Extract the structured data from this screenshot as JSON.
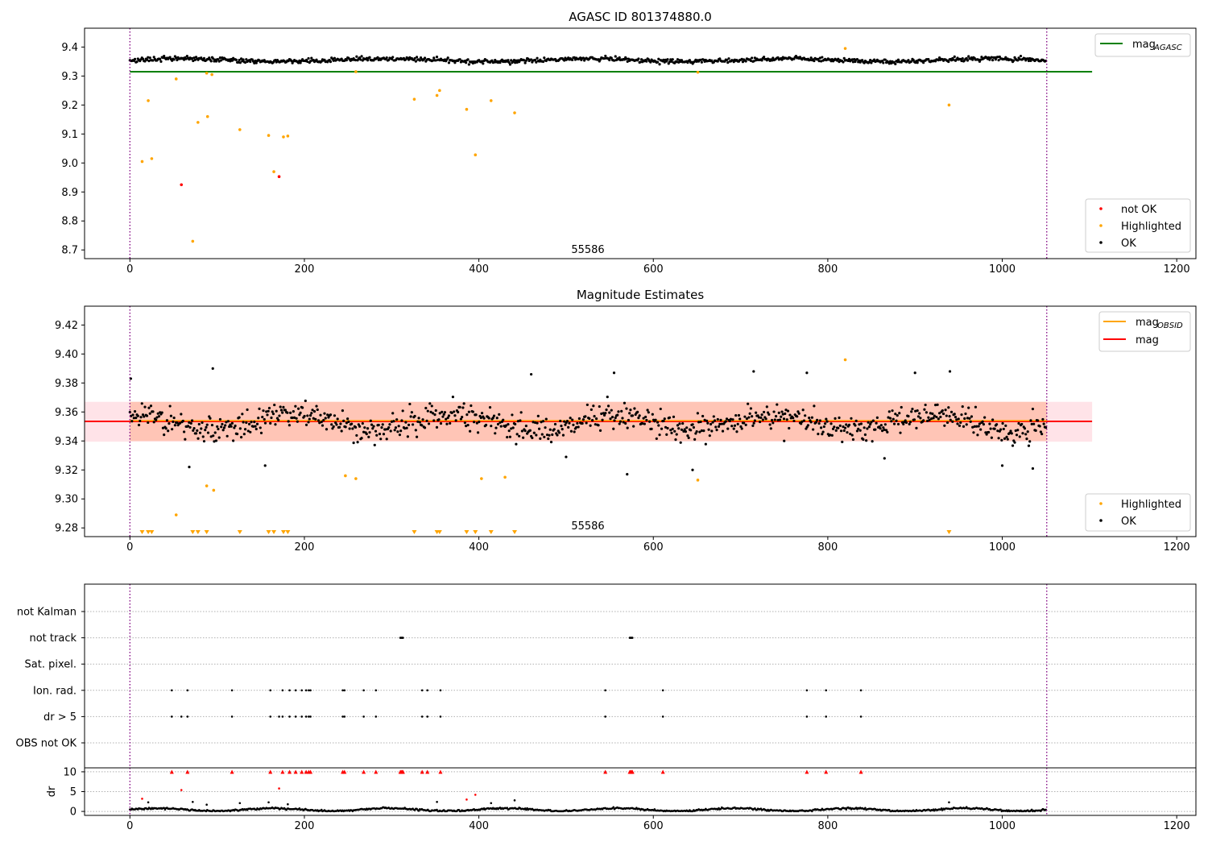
{
  "chart_data": [
    {
      "type": "scatter",
      "title": "AGASC ID 801374880.0",
      "xlim": [
        -52,
        1222
      ],
      "ylim": [
        8.67,
        9.465
      ],
      "xticks": [
        0,
        200,
        400,
        600,
        800,
        1000,
        1200
      ],
      "yticks": [
        8.7,
        8.8,
        8.9,
        9.0,
        9.1,
        9.2,
        9.3,
        9.4
      ],
      "vlines": [
        0,
        1051
      ],
      "vline_color": "#800080",
      "obsid_label": {
        "x": 525,
        "y": 8.69,
        "text": "55586"
      },
      "hline": {
        "name": "mag_AGASC",
        "y": 9.315,
        "x": [
          0,
          1103
        ],
        "color": "#008000"
      },
      "legend_top": [
        {
          "name": "mag",
          "sub": "AGASC",
          "color": "#008000",
          "kind": "line"
        }
      ],
      "legend_bottom": [
        {
          "name": "not OK",
          "color": "#ff0000",
          "kind": "dot"
        },
        {
          "name": "Highlighted",
          "color": "#ffa500",
          "kind": "dot"
        },
        {
          "name": "OK",
          "color": "#000000",
          "kind": "dot"
        }
      ],
      "ok_series": {
        "name": "OK",
        "x_start": 0,
        "x_end": 1051,
        "center": 9.355,
        "amplitude": 0.012,
        "wave": 0.008
      },
      "highlighted": [
        [
          14,
          9.005
        ],
        [
          21,
          9.215
        ],
        [
          25,
          9.015
        ],
        [
          53,
          9.29
        ],
        [
          72,
          8.73
        ],
        [
          78,
          9.14
        ],
        [
          88,
          9.31
        ],
        [
          89,
          9.16
        ],
        [
          94,
          9.305
        ],
        [
          126,
          9.115
        ],
        [
          159,
          9.095
        ],
        [
          165,
          8.97
        ],
        [
          176,
          9.09
        ],
        [
          181,
          9.093
        ],
        [
          259,
          9.315
        ],
        [
          326,
          9.22
        ],
        [
          352,
          9.233
        ],
        [
          355,
          9.25
        ],
        [
          386,
          9.185
        ],
        [
          396,
          9.028
        ],
        [
          414,
          9.215
        ],
        [
          441,
          9.173
        ],
        [
          651,
          9.313
        ],
        [
          820,
          9.395
        ],
        [
          939,
          9.2
        ]
      ],
      "not_ok": [
        [
          59,
          8.925
        ],
        [
          171,
          8.953
        ]
      ]
    },
    {
      "type": "scatter",
      "title": "Magnitude Estimates",
      "xlim": [
        -52,
        1222
      ],
      "ylim": [
        9.274,
        9.433
      ],
      "xticks": [
        0,
        200,
        400,
        600,
        800,
        1000,
        1200
      ],
      "yticks": [
        9.28,
        9.3,
        9.32,
        9.34,
        9.36,
        9.38,
        9.4,
        9.42
      ],
      "vlines": [
        0,
        1051
      ],
      "vline_color": "#800080",
      "obsid_label": {
        "x": 525,
        "y": 9.279,
        "text": "55586"
      },
      "mag_line": {
        "name": "mag",
        "y": 9.3535,
        "x": [
          -52,
          1103
        ],
        "color": "#ff0000"
      },
      "mag_band": {
        "y": [
          9.3395,
          9.367
        ],
        "x": [
          -52,
          1103
        ],
        "color": "#ffc0cb"
      },
      "obsid_line": {
        "name": "mag_OBSID",
        "y": 9.354,
        "x": [
          0,
          1051
        ],
        "color": "#ffa500"
      },
      "obsid_band": {
        "y": [
          9.34,
          9.367
        ],
        "x": [
          0,
          1051
        ],
        "color": "#ffa07a"
      },
      "legend_top": [
        {
          "name": "mag",
          "sub": "OBSID",
          "color": "#ffa500",
          "kind": "line"
        },
        {
          "name": "mag",
          "sub": "",
          "color": "#ff0000",
          "kind": "line"
        }
      ],
      "legend_bottom": [
        {
          "name": "Highlighted",
          "color": "#ffa500",
          "kind": "dot"
        },
        {
          "name": "OK",
          "color": "#000000",
          "kind": "dot"
        }
      ],
      "ok_series": {
        "name": "OK",
        "x_start": 0,
        "x_end": 1051,
        "center": 9.353,
        "amplitude": 0.014,
        "wave": 0.007
      },
      "outliers_ok": [
        [
          1,
          9.383
        ],
        [
          95,
          9.39
        ],
        [
          460,
          9.386
        ],
        [
          555,
          9.387
        ],
        [
          715,
          9.388
        ],
        [
          776,
          9.387
        ],
        [
          900,
          9.387
        ],
        [
          940,
          9.388
        ],
        [
          68,
          9.322
        ],
        [
          155,
          9.323
        ],
        [
          500,
          9.329
        ],
        [
          570,
          9.317
        ],
        [
          645,
          9.32
        ],
        [
          750,
          9.34
        ],
        [
          865,
          9.328
        ],
        [
          1000,
          9.323
        ],
        [
          1035,
          9.321
        ]
      ],
      "highlighted": [
        [
          53,
          9.289
        ],
        [
          88,
          9.309
        ],
        [
          96,
          9.306
        ],
        [
          247,
          9.316
        ],
        [
          259,
          9.314
        ],
        [
          403,
          9.314
        ],
        [
          430,
          9.315
        ],
        [
          651,
          9.313
        ],
        [
          820,
          9.396
        ]
      ],
      "offscale_marker_x": [
        14,
        21,
        25,
        72,
        78,
        88,
        126,
        159,
        165,
        176,
        181,
        326,
        352,
        355,
        386,
        396,
        414,
        441,
        939
      ]
    },
    {
      "type": "scatter",
      "xlim": [
        -52,
        1222
      ],
      "xticks": [
        0,
        200,
        400,
        600,
        800,
        1000,
        1200
      ],
      "vlines": [
        0,
        1051
      ],
      "flag_rows": [
        "not Kalman",
        "not track",
        "Sat. pixel.",
        "Ion. rad.",
        "dr > 5",
        "OBS not OK"
      ],
      "flags": {
        "not track": [
          310,
          311,
          312,
          313,
          573,
          574,
          575,
          576
        ],
        "Ion. rad.": [
          48,
          66,
          117,
          161,
          175,
          183,
          190,
          197,
          202,
          205,
          207,
          244,
          246,
          268,
          282,
          335,
          341,
          356,
          545,
          611,
          776,
          798,
          838
        ],
        "dr > 5": [
          48,
          59,
          66,
          117,
          161,
          171,
          175,
          183,
          190,
          197,
          202,
          205,
          207,
          244,
          246,
          268,
          282,
          335,
          341,
          356,
          545,
          611,
          776,
          798,
          838
        ]
      },
      "dr": {
        "ylabel": "dr",
        "ylim": [
          -1,
          11
        ],
        "yticks": [
          0,
          5,
          10
        ],
        "ok_level": 0.45,
        "capped": [
          48,
          66,
          117,
          161,
          175,
          183,
          190,
          197,
          202,
          205,
          207,
          244,
          246,
          268,
          282,
          310,
          311,
          312,
          313,
          335,
          341,
          356,
          545,
          573,
          574,
          575,
          576,
          611,
          776,
          798,
          838
        ],
        "capped_value": 10,
        "red_points": [
          [
            14,
            3.2
          ],
          [
            59,
            5.4
          ],
          [
            171,
            5.8
          ],
          [
            386,
            3.0
          ],
          [
            396,
            4.2
          ]
        ],
        "black_points": [
          [
            21,
            2.3
          ],
          [
            72,
            2.4
          ],
          [
            88,
            1.7
          ],
          [
            126,
            2.1
          ],
          [
            159,
            2.3
          ],
          [
            181,
            1.8
          ],
          [
            352,
            2.4
          ],
          [
            414,
            2.1
          ],
          [
            441,
            2.8
          ],
          [
            939,
            2.3
          ]
        ]
      }
    }
  ]
}
